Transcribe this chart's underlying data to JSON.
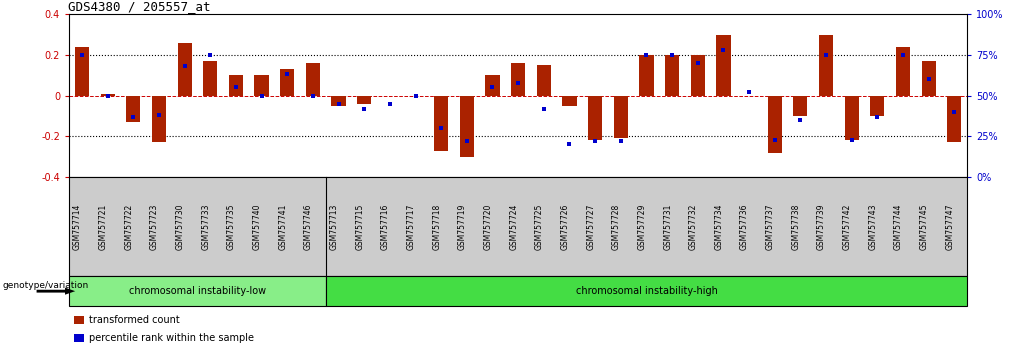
{
  "title": "GDS4380 / 205557_at",
  "categories": [
    "GSM757714",
    "GSM757721",
    "GSM757722",
    "GSM757723",
    "GSM757730",
    "GSM757733",
    "GSM757735",
    "GSM757740",
    "GSM757741",
    "GSM757746",
    "GSM757713",
    "GSM757715",
    "GSM757716",
    "GSM757717",
    "GSM757718",
    "GSM757719",
    "GSM757720",
    "GSM757724",
    "GSM757725",
    "GSM757726",
    "GSM757727",
    "GSM757728",
    "GSM757729",
    "GSM757731",
    "GSM757732",
    "GSM757734",
    "GSM757736",
    "GSM757737",
    "GSM757738",
    "GSM757739",
    "GSM757742",
    "GSM757743",
    "GSM757744",
    "GSM757745",
    "GSM757747"
  ],
  "bar_values": [
    0.24,
    0.01,
    -0.13,
    -0.23,
    0.26,
    0.17,
    0.1,
    0.1,
    0.13,
    0.16,
    -0.05,
    -0.04,
    0.0,
    0.0,
    -0.27,
    -0.3,
    0.1,
    0.16,
    0.15,
    -0.05,
    -0.22,
    -0.21,
    0.2,
    0.2,
    0.2,
    0.3,
    0.0,
    -0.28,
    -0.1,
    0.3,
    -0.22,
    -0.1,
    0.24,
    0.17,
    -0.23
  ],
  "dot_values_pct": [
    75,
    50,
    37,
    38,
    68,
    75,
    55,
    50,
    63,
    50,
    45,
    42,
    45,
    50,
    30,
    22,
    55,
    58,
    42,
    20,
    22,
    22,
    75,
    75,
    70,
    78,
    52,
    23,
    35,
    75,
    23,
    37,
    75,
    60,
    40
  ],
  "low_group_count": 10,
  "low_label": "chromosomal instability-low",
  "high_label": "chromosomal instability-high",
  "genotype_label": "genotype/variation",
  "legend_bar": "transformed count",
  "legend_dot": "percentile rank within the sample",
  "bar_color": "#AA2200",
  "dot_color": "#0000CC",
  "ymin": -0.4,
  "ymax": 0.4,
  "yticks_left": [
    -0.4,
    -0.2,
    0.0,
    0.2,
    0.4
  ],
  "yticks_right_pct": [
    0,
    25,
    50,
    75,
    100
  ],
  "hline_dotted": [
    -0.2,
    0.2
  ],
  "hline_zero_color": "#CC0000",
  "bg_color": "#FFFFFF",
  "plot_bg": "#FFFFFF",
  "label_area_bg": "#CCCCCC",
  "low_group_bg": "#88EE88",
  "high_group_bg": "#44DD44"
}
